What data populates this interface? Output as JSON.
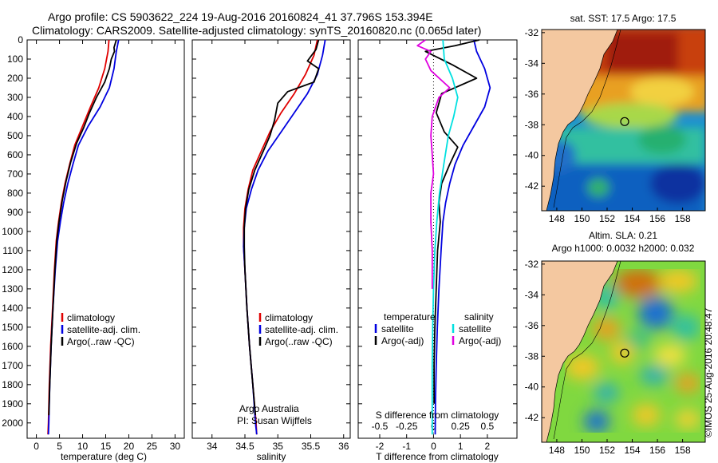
{
  "header": {
    "line1": "Argo profile: CS 5903622_224 19-Aug-2016 20160824_41 37.796S 153.394E",
    "line2": "Climatology: CARS2009. Satellite-adjusted climatology: synTS_20160820.nc (0.065d later)"
  },
  "colors": {
    "climatology": "#e00000",
    "satellite": "#0000e0",
    "argo": "#000000",
    "sat_diff": "#00e0e0",
    "argo_adj": "#e000e0"
  },
  "footer": {
    "credit": "Argo Australia",
    "pi": "PI: Susan Wijffels",
    "stamp": "©IMOS 25-Aug-2016 20:48:47"
  },
  "chart_data": [
    {
      "type": "line",
      "xlabel": "temperature (deg C)",
      "ylabel": "",
      "xlim": [
        -2,
        32
      ],
      "ylim": [
        2080,
        0
      ],
      "xticks": [
        0,
        5,
        10,
        15,
        20,
        25,
        30
      ],
      "yticks": [
        0,
        100,
        200,
        300,
        400,
        500,
        600,
        700,
        800,
        900,
        1000,
        1100,
        1200,
        1300,
        1400,
        1500,
        1600,
        1700,
        1800,
        1900,
        2000
      ],
      "legend_position": "bottom-right",
      "series": [
        {
          "name": "climatology",
          "color": "#e00000",
          "points": [
            [
              15.7,
              0
            ],
            [
              15.5,
              60
            ],
            [
              14.8,
              150
            ],
            [
              13.5,
              250
            ],
            [
              11.7,
              350
            ],
            [
              10,
              450
            ],
            [
              8.3,
              550
            ],
            [
              7.2,
              650
            ],
            [
              6.2,
              750
            ],
            [
              5.4,
              850
            ],
            [
              4.8,
              950
            ],
            [
              4.3,
              1050
            ],
            [
              3.9,
              1200
            ],
            [
              3.5,
              1400
            ],
            [
              3.1,
              1600
            ],
            [
              2.8,
              1800
            ],
            [
              2.6,
              2000
            ],
            [
              2.5,
              2060
            ]
          ]
        },
        {
          "name": "satellite-adj. clim.",
          "color": "#0000e0",
          "points": [
            [
              17.8,
              0
            ],
            [
              17.3,
              60
            ],
            [
              16.8,
              150
            ],
            [
              15.8,
              250
            ],
            [
              13.8,
              350
            ],
            [
              11.2,
              450
            ],
            [
              9.1,
              550
            ],
            [
              7.9,
              650
            ],
            [
              6.8,
              750
            ],
            [
              5.9,
              850
            ],
            [
              5.2,
              950
            ],
            [
              4.6,
              1050
            ],
            [
              4.1,
              1200
            ],
            [
              3.6,
              1400
            ],
            [
              3.2,
              1600
            ],
            [
              2.9,
              1800
            ],
            [
              2.7,
              2000
            ],
            [
              2.6,
              2060
            ]
          ]
        },
        {
          "name": "Argo(..raw -QC)",
          "color": "#000000",
          "points": [
            [
              17.3,
              0
            ],
            [
              16.8,
              40
            ],
            [
              16.9,
              60
            ],
            [
              16.2,
              100
            ],
            [
              15.8,
              150
            ],
            [
              14.8,
              220
            ],
            [
              13,
              300
            ],
            [
              11.5,
              380
            ],
            [
              10.2,
              460
            ],
            [
              8.7,
              540
            ],
            [
              7.4,
              640
            ],
            [
              6.4,
              740
            ],
            [
              5.6,
              840
            ],
            [
              4.9,
              950
            ],
            [
              4.4,
              1050
            ],
            [
              4,
              1200
            ],
            [
              3.6,
              1400
            ],
            [
              3.2,
              1600
            ],
            [
              2.9,
              1800
            ],
            [
              2.7,
              1960
            ]
          ]
        }
      ]
    },
    {
      "type": "line",
      "xlabel": "salinity",
      "ylabel": "",
      "xlim": [
        33.7,
        36.1
      ],
      "ylim": [
        2080,
        0
      ],
      "xticks": [
        34,
        34.5,
        35,
        35.5,
        36
      ],
      "legend_position": "bottom-right",
      "series": [
        {
          "name": "climatology",
          "color": "#e00000",
          "points": [
            [
              35.6,
              0
            ],
            [
              35.55,
              80
            ],
            [
              35.42,
              180
            ],
            [
              35.25,
              280
            ],
            [
              35.05,
              380
            ],
            [
              34.88,
              480
            ],
            [
              34.75,
              580
            ],
            [
              34.62,
              680
            ],
            [
              34.55,
              780
            ],
            [
              34.5,
              880
            ],
            [
              34.48,
              980
            ],
            [
              34.48,
              1080
            ],
            [
              34.5,
              1200
            ],
            [
              34.53,
              1400
            ],
            [
              34.57,
              1600
            ],
            [
              34.62,
              1800
            ],
            [
              34.67,
              2000
            ],
            [
              34.68,
              2060
            ]
          ]
        },
        {
          "name": "satellite-adj. clim.",
          "color": "#0000e0",
          "points": [
            [
              35.72,
              0
            ],
            [
              35.68,
              80
            ],
            [
              35.6,
              180
            ],
            [
              35.45,
              280
            ],
            [
              35.25,
              380
            ],
            [
              35.05,
              480
            ],
            [
              34.85,
              580
            ],
            [
              34.7,
              680
            ],
            [
              34.6,
              780
            ],
            [
              34.52,
              880
            ],
            [
              34.49,
              980
            ],
            [
              34.48,
              1080
            ],
            [
              34.5,
              1200
            ],
            [
              34.53,
              1400
            ],
            [
              34.57,
              1600
            ],
            [
              34.62,
              1800
            ],
            [
              34.66,
              2000
            ],
            [
              34.68,
              2060
            ]
          ]
        },
        {
          "name": "Argo(..raw -QC)",
          "color": "#000000",
          "points": [
            [
              35.62,
              0
            ],
            [
              35.58,
              50
            ],
            [
              35.45,
              110
            ],
            [
              35.62,
              150
            ],
            [
              35.55,
              220
            ],
            [
              35.15,
              270
            ],
            [
              35.0,
              330
            ],
            [
              34.95,
              420
            ],
            [
              34.88,
              500
            ],
            [
              34.78,
              580
            ],
            [
              34.65,
              680
            ],
            [
              34.56,
              780
            ],
            [
              34.51,
              880
            ],
            [
              34.49,
              980
            ],
            [
              34.49,
              1080
            ],
            [
              34.5,
              1200
            ],
            [
              34.53,
              1400
            ],
            [
              34.57,
              1600
            ],
            [
              34.62,
              1800
            ],
            [
              34.66,
              1960
            ]
          ]
        }
      ],
      "annotations": [
        "Argo Australia",
        "PI: Susan Wijffels"
      ]
    },
    {
      "type": "line",
      "xlabel": "T difference from climatology",
      "xlabel_top": "S difference from climatology",
      "xlim": [
        -2.8,
        3.1
      ],
      "ylim": [
        2080,
        0
      ],
      "xticks": [
        -2,
        -1,
        0,
        1,
        2
      ],
      "xticks_top": [
        "-0.5",
        "-0.25",
        "0",
        "0.25",
        "0.5"
      ],
      "legend_position": "bottom",
      "series": [
        {
          "name": "temperature satellite",
          "color": "#0000e0",
          "points": [
            [
              1.5,
              0
            ],
            [
              1.6,
              60
            ],
            [
              1.9,
              150
            ],
            [
              2.1,
              250
            ],
            [
              1.9,
              350
            ],
            [
              1.5,
              450
            ],
            [
              1.1,
              550
            ],
            [
              0.8,
              650
            ],
            [
              0.6,
              750
            ],
            [
              0.45,
              850
            ],
            [
              0.35,
              950
            ],
            [
              0.28,
              1100
            ],
            [
              0.2,
              1300
            ],
            [
              0.14,
              1500
            ],
            [
              0.1,
              1700
            ],
            [
              0.07,
              1900
            ],
            [
              0.06,
              2060
            ]
          ]
        },
        {
          "name": "temperature Argo(-adj)",
          "color": "#000000",
          "points": [
            [
              1.7,
              0
            ],
            [
              0.8,
              30
            ],
            [
              -0.3,
              60
            ],
            [
              0.7,
              130
            ],
            [
              1.6,
              200
            ],
            [
              0.3,
              280
            ],
            [
              0.1,
              380
            ],
            [
              0.4,
              480
            ],
            [
              0.9,
              560
            ],
            [
              0.6,
              650
            ],
            [
              0.3,
              750
            ],
            [
              0.2,
              850
            ],
            [
              0.25,
              950
            ],
            [
              0.15,
              1100
            ],
            [
              0.1,
              1300
            ],
            [
              0.05,
              1500
            ],
            [
              0.02,
              1700
            ],
            [
              0.02,
              1900
            ]
          ]
        },
        {
          "name": "salinity satellite",
          "color": "#00e0e0",
          "points": [
            [
              0.35,
              0
            ],
            [
              0.4,
              100
            ],
            [
              0.7,
              200
            ],
            [
              0.9,
              300
            ],
            [
              0.75,
              400
            ],
            [
              0.55,
              500
            ],
            [
              0.38,
              650
            ],
            [
              0.22,
              800
            ],
            [
              0.12,
              950
            ],
            [
              0.05,
              1100
            ],
            [
              0,
              1300
            ],
            [
              -0.03,
              1500
            ],
            [
              -0.05,
              1700
            ],
            [
              -0.05,
              1900
            ],
            [
              -0.05,
              2060
            ]
          ]
        },
        {
          "name": "salinity Argo(-adj)",
          "color": "#e000e0",
          "points": [
            [
              -0.3,
              0
            ],
            [
              -0.6,
              30
            ],
            [
              -0.1,
              60
            ],
            [
              -0.3,
              100
            ],
            [
              -0.1,
              160
            ],
            [
              0.6,
              250
            ],
            [
              0.2,
              300
            ],
            [
              -0.05,
              400
            ],
            [
              -0.1,
              500
            ],
            [
              -0.05,
              600
            ],
            [
              0,
              700
            ],
            [
              -0.1,
              800
            ],
            [
              -0.1,
              950
            ],
            [
              -0.05,
              1100
            ],
            [
              -0.05,
              1200
            ],
            [
              -0.05,
              1300
            ]
          ]
        }
      ],
      "legend": {
        "temperature_header": "temperature",
        "salinity_header": "salinity",
        "entries": [
          "satellite",
          "Argo(-adj)",
          "satellite",
          "Argo(-adj)"
        ]
      }
    },
    {
      "type": "heatmap",
      "title": "sat. SST: 17.5 Argo: 17.5",
      "xticks": [
        148,
        150,
        152,
        154,
        156,
        158
      ],
      "yticks": [
        -32,
        -34,
        -36,
        -38,
        -40,
        -42
      ],
      "xlim": [
        146.8,
        159.8
      ],
      "ylim": [
        -43.6,
        -31.8
      ],
      "marker": {
        "lon": 153.394,
        "lat": -37.796
      }
    },
    {
      "type": "heatmap",
      "title": "Altim. SLA: 0.21",
      "subtitle": "Argo h1000: 0.0032 h2000: 0.032",
      "xticks": [
        148,
        150,
        152,
        154,
        156,
        158
      ],
      "yticks": [
        -32,
        -34,
        -36,
        -38,
        -40,
        -42
      ],
      "xlim": [
        146.8,
        159.8
      ],
      "ylim": [
        -43.6,
        -31.8
      ],
      "marker": {
        "lon": 153.394,
        "lat": -37.796
      }
    }
  ]
}
